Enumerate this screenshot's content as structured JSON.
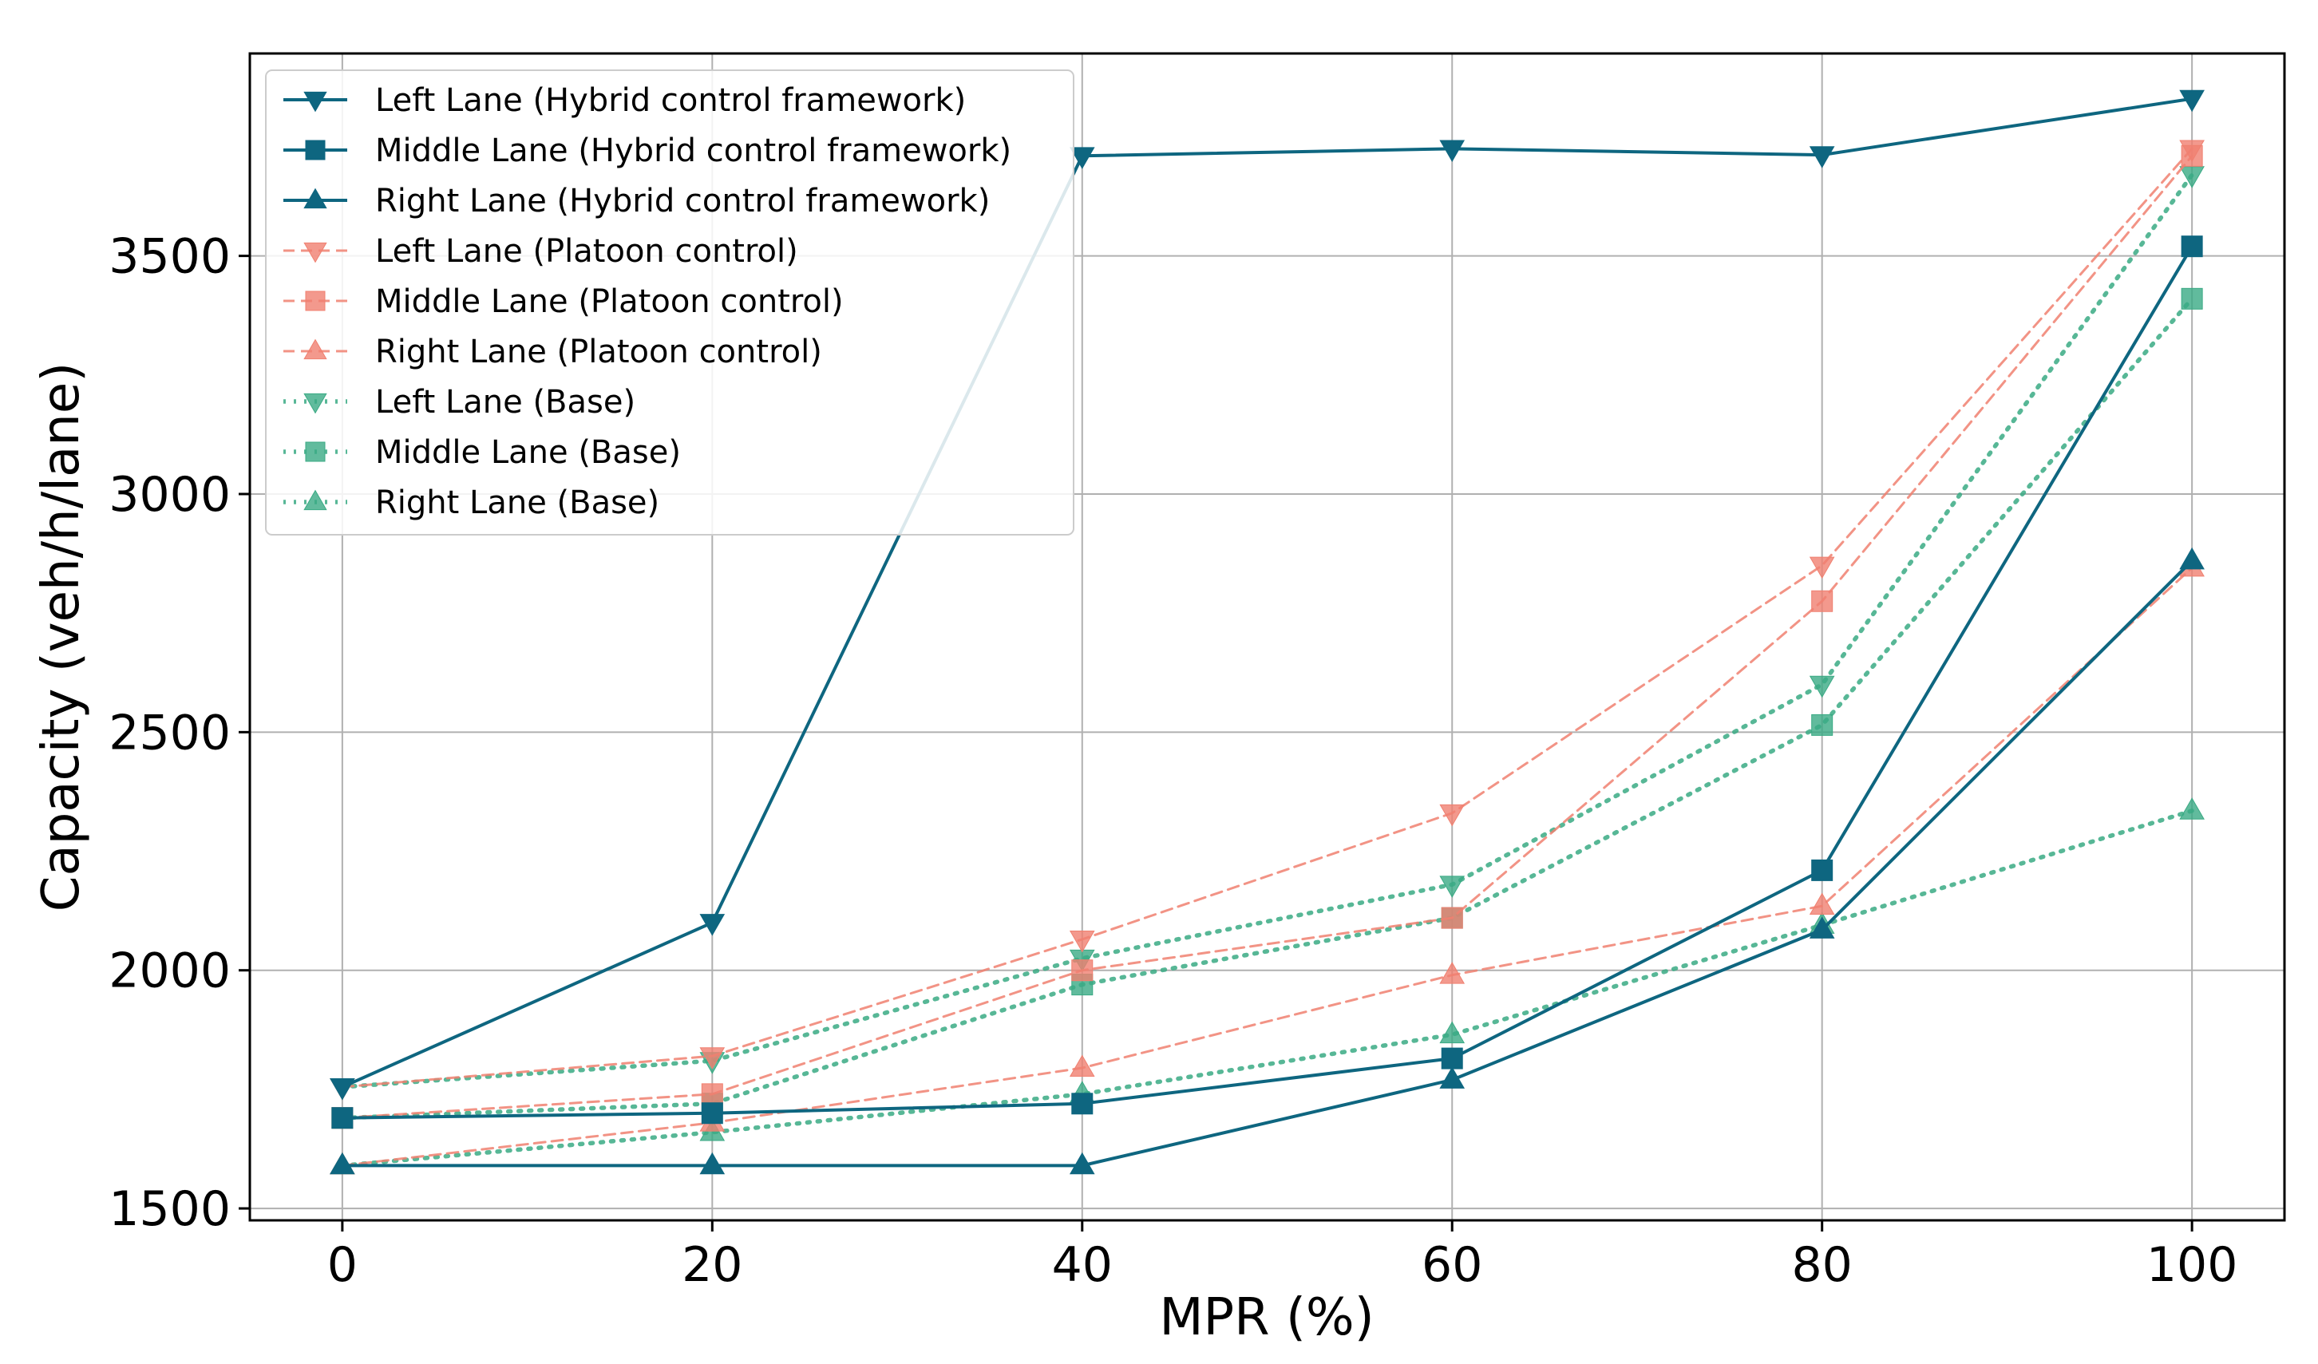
{
  "chart_data": {
    "type": "line",
    "title": "",
    "xlabel": "MPR (%)",
    "ylabel": "Capacity (veh/h/lane)",
    "x": [
      0,
      20,
      40,
      60,
      80,
      100
    ],
    "xticks": [
      "0",
      "20",
      "40",
      "60",
      "80",
      "100"
    ],
    "yticks": [
      "1500",
      "2000",
      "2500",
      "3000",
      "3500"
    ],
    "xlim": [
      -5,
      105
    ],
    "ylim": [
      1475,
      3925
    ],
    "grid": true,
    "legend_position": "top-left",
    "colors": {
      "hybrid": "#0e6680",
      "platoon": "#f08070",
      "base": "#3aaa84"
    },
    "series": [
      {
        "name": "Left Lane (Hybrid control framework)",
        "group": "hybrid",
        "marker": "triangle-down",
        "values": [
          1755,
          2100,
          3710,
          3725,
          3712,
          3830
        ]
      },
      {
        "name": "Middle Lane (Hybrid control framework)",
        "group": "hybrid",
        "marker": "square",
        "values": [
          1690,
          1700,
          1720,
          1815,
          2210,
          3520
        ]
      },
      {
        "name": "Right Lane (Hybrid control framework)",
        "group": "hybrid",
        "marker": "triangle-up",
        "values": [
          1590,
          1590,
          1590,
          1770,
          2085,
          2860
        ]
      },
      {
        "name": "Left Lane (Platoon control)",
        "group": "platoon",
        "marker": "triangle-down",
        "values": [
          1755,
          1820,
          2065,
          2330,
          2850,
          3725
        ]
      },
      {
        "name": "Middle Lane (Platoon control)",
        "group": "platoon",
        "marker": "square",
        "values": [
          1690,
          1740,
          2000,
          2110,
          2775,
          3710
        ]
      },
      {
        "name": "Right Lane (Platoon control)",
        "group": "platoon",
        "marker": "triangle-up",
        "values": [
          1590,
          1680,
          1795,
          1990,
          2135,
          2845
        ]
      },
      {
        "name": "Left Lane (Base)",
        "group": "base",
        "marker": "triangle-down",
        "values": [
          1755,
          1810,
          2025,
          2180,
          2600,
          3670
        ]
      },
      {
        "name": "Middle Lane (Base)",
        "group": "base",
        "marker": "square",
        "values": [
          1690,
          1720,
          1970,
          2110,
          2515,
          3410
        ]
      },
      {
        "name": "Right Lane (Base)",
        "group": "base",
        "marker": "triangle-up",
        "values": [
          1590,
          1660,
          1740,
          1865,
          2095,
          2335
        ]
      }
    ]
  }
}
